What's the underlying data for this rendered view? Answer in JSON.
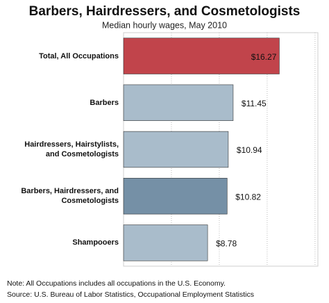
{
  "chart_data": {
    "type": "bar",
    "orientation": "horizontal",
    "title": "Barbers, Hairdressers, and Cosmetologists",
    "subtitle": "Median hourly wages, May 2010",
    "categories": [
      "Total, All Occupations",
      "Barbers",
      "Hairdressers, Hairstylists,\nand Cosmetologists",
      "Barbers, Hairdressers, and\nCosmetologists",
      "Shampooers"
    ],
    "values": [
      16.27,
      11.45,
      10.94,
      10.82,
      8.78
    ],
    "value_labels": [
      "$16.27",
      "$11.45",
      "$10.94",
      "$10.82",
      "$8.78"
    ],
    "colors": [
      "#c1444b",
      "#a9bccb",
      "#a9bccb",
      "#7590a6",
      "#a9bccb"
    ],
    "xlim": [
      0,
      20.3
    ],
    "gridlines": [
      5,
      10,
      15,
      20
    ],
    "notes": [
      "Note: All Occupations includes all occupations in the U.S. Economy.",
      "Source: U.S. Bureau of Labor Statistics, Occupational Employment Statistics"
    ]
  }
}
